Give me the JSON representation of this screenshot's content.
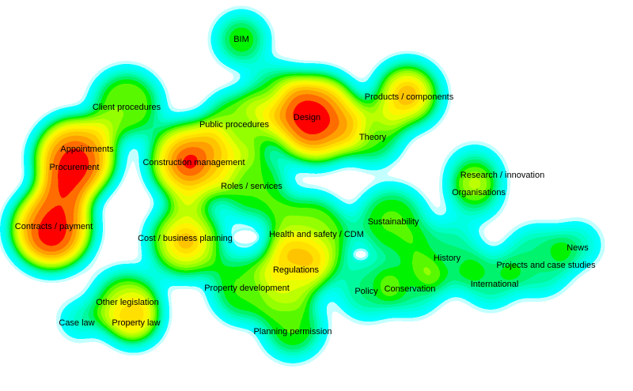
{
  "nodes": [
    {
      "label": "BIM"
    },
    {
      "label": "Client procedures"
    },
    {
      "label": "Public procedures"
    },
    {
      "label": "Design"
    },
    {
      "label": "Products / components"
    },
    {
      "label": "Theory"
    },
    {
      "label": "Appointments"
    },
    {
      "label": "Procurement"
    },
    {
      "label": "Construction management"
    },
    {
      "label": "Roles / services"
    },
    {
      "label": "Research / innovation"
    },
    {
      "label": "Organisations"
    },
    {
      "label": "Contracts / payment"
    },
    {
      "label": "Sustainability"
    },
    {
      "label": "Cost / business planning"
    },
    {
      "label": "Health and safety / CDM"
    },
    {
      "label": "News"
    },
    {
      "label": "History"
    },
    {
      "label": "Projects and case studies"
    },
    {
      "label": "Regulations"
    },
    {
      "label": "International"
    },
    {
      "label": "Property development"
    },
    {
      "label": "Policy"
    },
    {
      "label": "Conservation"
    },
    {
      "label": "Other legislation"
    },
    {
      "label": "Case law"
    },
    {
      "label": "Property law"
    },
    {
      "label": "Planning permission"
    }
  ]
}
